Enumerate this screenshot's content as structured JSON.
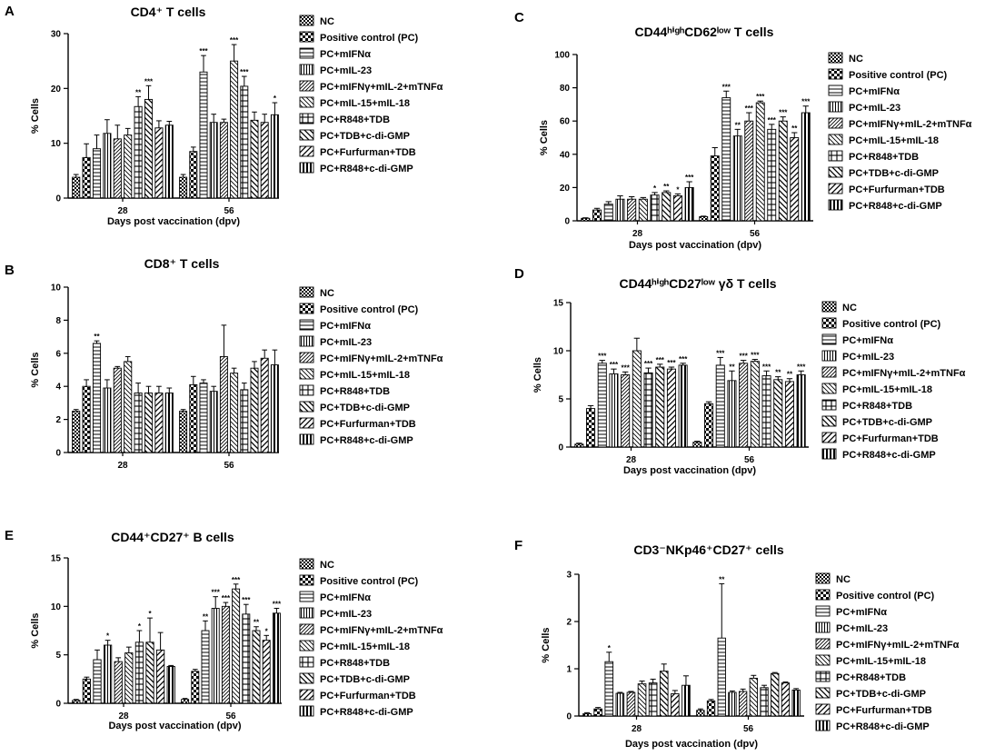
{
  "legend_labels": [
    "NC",
    "Positive control (PC)",
    "PC+mIFNα",
    "PC+mIL-23",
    "PC+mIFNγ+mIL-2+mTNFα",
    "PC+mIL-15+mIL-18",
    "PC+R848+TDB",
    "PC+TDB+c-di-GMP",
    "PC+Furfurman+TDB",
    "PC+R848+c-di-GMP"
  ],
  "chart_data": [
    {
      "type": "bar",
      "panel": "A",
      "title": "CD4⁺ T cells",
      "xlabel": "Days post vaccination (dpv)",
      "ylabel": "% Cells",
      "categories": [
        "28",
        "56"
      ],
      "ylim": [
        0,
        30
      ],
      "yticks": [
        0,
        10,
        20,
        30
      ],
      "values": [
        [
          3.8,
          7.4,
          9,
          11.8,
          10.8,
          11.5,
          16.7,
          18,
          12.8,
          13.3
        ],
        [
          3.8,
          8.5,
          23,
          13.8,
          13.8,
          25,
          20.4,
          14.2,
          13.8,
          15.2
        ]
      ],
      "errors": [
        [
          0.5,
          2.5,
          2.5,
          2.5,
          2.5,
          1.2,
          1.8,
          2.5,
          1.3,
          0.7
        ],
        [
          0.5,
          0.8,
          3,
          1.5,
          0.6,
          3,
          1.8,
          1.5,
          1.5,
          2.2
        ]
      ],
      "stars": [
        [
          "",
          "",
          "",
          "",
          "",
          "",
          "**",
          "***",
          "",
          ""
        ],
        [
          "",
          "",
          "***",
          "",
          "",
          "***",
          "***",
          "",
          "",
          "*"
        ]
      ]
    },
    {
      "type": "bar",
      "panel": "B",
      "title": "CD8⁺ T cells",
      "xlabel": "",
      "ylabel": "% Cells",
      "categories": [
        "28",
        "56"
      ],
      "ylim": [
        0,
        10
      ],
      "yticks": [
        0,
        2,
        4,
        6,
        8,
        10
      ],
      "values": [
        [
          2.5,
          4,
          6.6,
          3.9,
          5.1,
          5.5,
          3.6,
          3.6,
          3.6,
          3.6
        ],
        [
          2.5,
          4.1,
          4.2,
          3.7,
          5.8,
          4.8,
          3.8,
          5.1,
          5.7,
          5.3
        ]
      ],
      "errors": [
        [
          0.1,
          0.4,
          0.15,
          0.5,
          0.1,
          0.3,
          0.6,
          0.4,
          0.4,
          0.3
        ],
        [
          0.1,
          0.5,
          0.2,
          0.3,
          1.9,
          0.3,
          0.4,
          0.4,
          0.5,
          0.9
        ]
      ],
      "stars": [
        [
          "",
          "",
          "**",
          "",
          "",
          "",
          "",
          "",
          "",
          ""
        ],
        [
          "",
          "",
          "",
          "",
          "",
          "",
          "",
          "",
          "",
          ""
        ]
      ]
    },
    {
      "type": "bar",
      "panel": "C",
      "title": "CD44ʰⁱᵍʰCD62ˡᵒʷ T cells",
      "xlabel": "Days post vaccination (dpv)",
      "ylabel": "% Cells",
      "categories": [
        "28",
        "56"
      ],
      "ylim": [
        0,
        100
      ],
      "yticks": [
        0,
        20,
        40,
        60,
        80,
        100
      ],
      "values": [
        [
          1.5,
          6.5,
          10,
          13,
          13,
          13,
          15.5,
          17,
          15,
          20
        ],
        [
          2.5,
          39,
          74,
          51,
          60,
          71,
          55,
          60,
          50,
          65
        ]
      ],
      "errors": [
        [
          0.3,
          1,
          1.5,
          2,
          1.5,
          1,
          1.5,
          1,
          1.2,
          3.5
        ],
        [
          0.3,
          5,
          4,
          4,
          5,
          1,
          3,
          2.5,
          3,
          4
        ]
      ],
      "stars": [
        [
          "",
          "",
          "",
          "",
          "",
          "",
          "*",
          "**",
          "*",
          "***"
        ],
        [
          "",
          "",
          "***",
          "**",
          "***",
          "***",
          "***",
          "***",
          "**",
          "***"
        ]
      ]
    },
    {
      "type": "bar",
      "panel": "D",
      "title": "CD44ʰⁱᵍʰCD27ˡᵒʷ γδ T cells",
      "xlabel": "Days post vaccination (dpv)",
      "ylabel": "% Cells",
      "categories": [
        "28",
        "56"
      ],
      "ylim": [
        0,
        15
      ],
      "yticks": [
        0,
        5,
        10,
        15
      ],
      "values": [
        [
          0.3,
          4,
          8.7,
          7.6,
          7.5,
          10,
          7.7,
          8.3,
          8.1,
          8.5
        ],
        [
          0.5,
          4.5,
          8.5,
          6.9,
          8.7,
          8.9,
          7.4,
          7,
          6.8,
          7.5
        ]
      ],
      "errors": [
        [
          0.1,
          0.3,
          0.3,
          0.5,
          0.3,
          1.3,
          0.5,
          0.3,
          0.2,
          0.2
        ],
        [
          0.1,
          0.2,
          0.8,
          1,
          0.3,
          0.2,
          0.5,
          0.3,
          0.3,
          0.4
        ]
      ],
      "stars": [
        [
          "",
          "",
          "***",
          "***",
          "***",
          "",
          "***",
          "***",
          "***",
          "***"
        ],
        [
          "",
          "",
          "***",
          "**",
          "***",
          "***",
          "***",
          "**",
          "**",
          "***"
        ]
      ]
    },
    {
      "type": "bar",
      "panel": "E",
      "title": "CD44⁺CD27⁺ B cells",
      "xlabel": "Days post vaccination (dpv)",
      "ylabel": "% Cells",
      "categories": [
        "28",
        "56"
      ],
      "ylim": [
        0,
        15
      ],
      "yticks": [
        0,
        5,
        10,
        15
      ],
      "values": [
        [
          0.3,
          2.5,
          4.5,
          6,
          4.3,
          5.2,
          6.3,
          6.3,
          5.5,
          3.8
        ],
        [
          0.4,
          3.3,
          7.5,
          9.8,
          10,
          11.8,
          9.2,
          7.5,
          6.5,
          9.3
        ]
      ],
      "errors": [
        [
          0.1,
          0.2,
          1,
          0.5,
          0.4,
          0.6,
          1.2,
          2.5,
          1.8,
          0.1
        ],
        [
          0.1,
          0.2,
          1,
          1.2,
          0.4,
          0.5,
          1,
          0.4,
          0.5,
          0.5
        ]
      ],
      "stars": [
        [
          "",
          "",
          "",
          "*",
          "",
          "",
          "*",
          "*",
          "",
          ""
        ],
        [
          "",
          "",
          "**",
          "***",
          "***",
          "***",
          "***",
          "**",
          "*",
          "***"
        ]
      ]
    },
    {
      "type": "bar",
      "panel": "F",
      "title": "CD3⁻NKp46⁺CD27⁺ cells",
      "xlabel": "Days post vaccination (dpv)",
      "ylabel": "% Cells",
      "categories": [
        "28",
        "56"
      ],
      "ylim": [
        0,
        3
      ],
      "yticks": [
        0,
        1,
        2,
        3
      ],
      "values": [
        [
          0.05,
          0.15,
          1.15,
          0.48,
          0.5,
          0.68,
          0.7,
          0.95,
          0.47,
          0.65
        ],
        [
          0.12,
          0.32,
          1.65,
          0.5,
          0.52,
          0.8,
          0.6,
          0.9,
          0.7,
          0.55
        ]
      ],
      "errors": [
        [
          0.02,
          0.03,
          0.2,
          0.02,
          0.02,
          0.06,
          0.08,
          0.15,
          0.07,
          0.2
        ],
        [
          0.03,
          0.03,
          1.15,
          0.03,
          0.05,
          0.06,
          0.05,
          0.02,
          0.02,
          0.03
        ]
      ],
      "stars": [
        [
          "",
          "",
          "*",
          "",
          "",
          "",
          "",
          "",
          "",
          ""
        ],
        [
          "",
          "",
          "**",
          "",
          "",
          "",
          "",
          "",
          "",
          ""
        ]
      ]
    }
  ]
}
